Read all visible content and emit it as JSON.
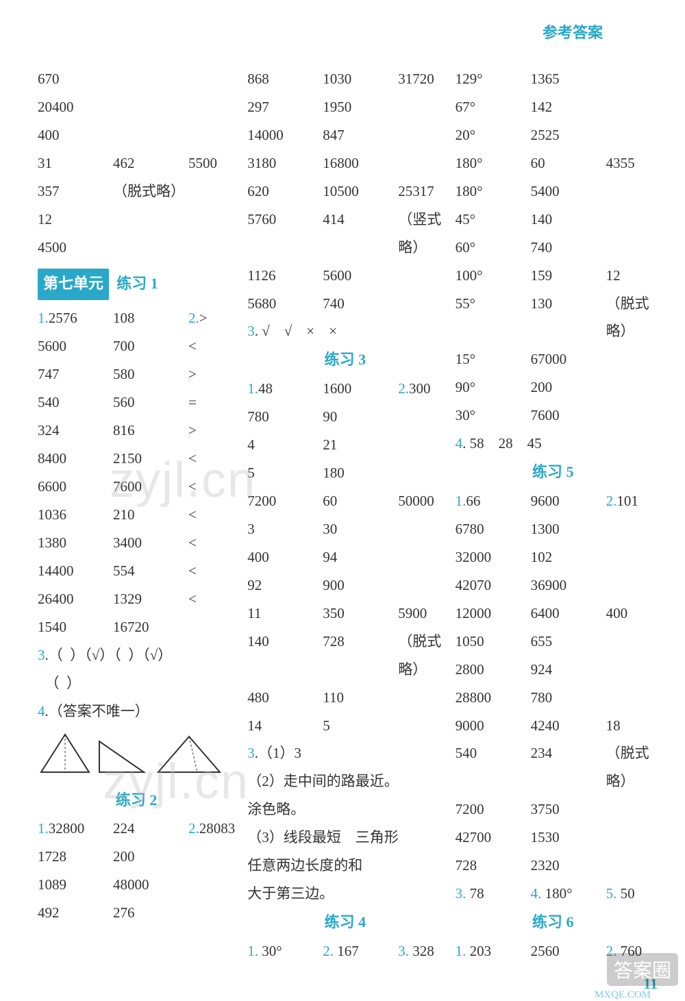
{
  "header": "参考答案",
  "col1": {
    "top_rows": [
      [
        "670",
        "",
        ""
      ],
      [
        "20400",
        "",
        ""
      ],
      [
        "400",
        "",
        ""
      ],
      [
        "31",
        "462",
        "5500"
      ],
      [
        "357",
        "（脱式略）",
        ""
      ],
      [
        "12",
        "",
        ""
      ],
      [
        "4500",
        "",
        ""
      ]
    ],
    "unit_label": "第七单元",
    "practice1": "练习 1",
    "p1_rows": [
      {
        "a": "1.",
        "an": "2576",
        "b": "108",
        "c": "2.",
        "cn": ">"
      },
      {
        "a": "",
        "an": "5600",
        "b": "700",
        "c": "",
        "cn": "<"
      },
      {
        "a": "",
        "an": "747",
        "b": "580",
        "c": "",
        "cn": ">"
      },
      {
        "a": "",
        "an": "540",
        "b": "560",
        "c": "",
        "cn": "="
      },
      {
        "a": "",
        "an": "324",
        "b": "816",
        "c": "",
        "cn": ">"
      },
      {
        "a": "",
        "an": "8400",
        "b": "2150",
        "c": "",
        "cn": "<"
      },
      {
        "a": "",
        "an": "6600",
        "b": "7600",
        "c": "",
        "cn": "<"
      },
      {
        "a": "",
        "an": "1036",
        "b": "210",
        "c": "",
        "cn": "<"
      },
      {
        "a": "",
        "an": "1380",
        "b": "3400",
        "c": "",
        "cn": "<"
      },
      {
        "a": "",
        "an": "14400",
        "b": "554",
        "c": "",
        "cn": "<"
      },
      {
        "a": "",
        "an": "26400",
        "b": "1329",
        "c": "",
        "cn": "<"
      },
      {
        "a": "",
        "an": "1540",
        "b": "16720",
        "c": "",
        "cn": ""
      }
    ],
    "q3_line1": "3.（  ）（√）（  ）（√）",
    "q3_line2": "   （  ）",
    "q4": "4.（答案不唯一）",
    "practice2": "练习 2",
    "p2_rows": [
      {
        "a": "1.",
        "an": "32800",
        "b": "224",
        "c": "2.",
        "cn": "28083"
      },
      {
        "a": "",
        "an": "1728",
        "b": "200",
        "c": "",
        "cn": ""
      },
      {
        "a": "",
        "an": "1089",
        "b": "48000",
        "c": "",
        "cn": ""
      },
      {
        "a": "",
        "an": "492",
        "b": "276",
        "c": "",
        "cn": ""
      }
    ]
  },
  "col2": {
    "top_rows": [
      [
        "868",
        "1030",
        "31720"
      ],
      [
        "297",
        "1950",
        ""
      ],
      [
        "14000",
        "847",
        ""
      ],
      [
        "3180",
        "16800",
        ""
      ],
      [
        "620",
        "10500",
        "25317"
      ],
      [
        "5760",
        "414",
        "（竖式略）"
      ],
      [
        "1126",
        "5600",
        ""
      ],
      [
        "5680",
        "740",
        ""
      ]
    ],
    "q3": "3. √　√　×　×",
    "practice3": "练习 3",
    "p3_rows": [
      {
        "a": "1.",
        "an": "48",
        "b": "1600",
        "c": "2.",
        "cn": "300"
      },
      {
        "a": "",
        "an": "780",
        "b": "90",
        "c": "",
        "cn": ""
      },
      {
        "a": "",
        "an": "4",
        "b": "21",
        "c": "",
        "cn": ""
      },
      {
        "a": "",
        "an": "5",
        "b": "180",
        "c": "",
        "cn": ""
      },
      {
        "a": "",
        "an": "7200",
        "b": "60",
        "c": "",
        "cn": "50000"
      },
      {
        "a": "",
        "an": "3",
        "b": "30",
        "c": "",
        "cn": ""
      },
      {
        "a": "",
        "an": "400",
        "b": "94",
        "c": "",
        "cn": ""
      },
      {
        "a": "",
        "an": "92",
        "b": "900",
        "c": "",
        "cn": ""
      },
      {
        "a": "",
        "an": "11",
        "b": "350",
        "c": "",
        "cn": "5900"
      },
      {
        "a": "",
        "an": "140",
        "b": "728",
        "c": "",
        "cn": "（脱式略）"
      },
      {
        "a": "",
        "an": "480",
        "b": "110",
        "c": "",
        "cn": ""
      },
      {
        "a": "",
        "an": "14",
        "b": "5",
        "c": "",
        "cn": ""
      }
    ],
    "q3b_1": "3.（1）3",
    "q3b_2": "  （2）走中间的路最近。",
    "q3b_3": "        涂色略。",
    "q3b_4": "  （3）线段最短　三角形",
    "q3b_5": "        任意两边长度的和",
    "q3b_6": "        大于第三边。",
    "practice4": "练习 4",
    "p4_q1": "1.",
    "p4_v1": "30°",
    "p4_q2": "2.",
    "p4_v2": "167",
    "p4_q3": "3.",
    "p4_v3": "328"
  },
  "col3": {
    "top_rows": [
      [
        "129°",
        "1365",
        ""
      ],
      [
        "67°",
        "142",
        ""
      ],
      [
        "20°",
        "2525",
        ""
      ],
      [
        "180°",
        "60",
        "4355"
      ],
      [
        "180°",
        "5400",
        ""
      ],
      [
        "45°",
        "140",
        ""
      ],
      [
        "60°",
        "740",
        ""
      ],
      [
        "100°",
        "159",
        "12"
      ],
      [
        "55°",
        "130",
        "（脱式略）"
      ],
      [
        "15°",
        "67000",
        ""
      ],
      [
        "90°",
        "200",
        ""
      ],
      [
        "30°",
        "7600",
        ""
      ]
    ],
    "q4": "4. 58　28　45",
    "practice5": "练习 5",
    "p5_rows": [
      {
        "a": "1.",
        "an": "66",
        "b": "9600",
        "c": "2.",
        "cn": "101"
      },
      {
        "a": "",
        "an": "6780",
        "b": "1300",
        "c": "",
        "cn": ""
      },
      {
        "a": "",
        "an": "32000",
        "b": "102",
        "c": "",
        "cn": ""
      },
      {
        "a": "",
        "an": "42070",
        "b": "36900",
        "c": "",
        "cn": ""
      },
      {
        "a": "",
        "an": "12000",
        "b": "6400",
        "c": "",
        "cn": "400"
      },
      {
        "a": "",
        "an": "1050",
        "b": "655",
        "c": "",
        "cn": ""
      },
      {
        "a": "",
        "an": "2800",
        "b": "924",
        "c": "",
        "cn": ""
      },
      {
        "a": "",
        "an": "28800",
        "b": "780",
        "c": "",
        "cn": ""
      },
      {
        "a": "",
        "an": "9000",
        "b": "4240",
        "c": "",
        "cn": "18"
      },
      {
        "a": "",
        "an": "540",
        "b": "234",
        "c": "",
        "cn": "（脱式略）"
      },
      {
        "a": "",
        "an": "7200",
        "b": "3750",
        "c": "",
        "cn": ""
      },
      {
        "a": "",
        "an": "42700",
        "b": "1530",
        "c": "",
        "cn": ""
      },
      {
        "a": "",
        "an": "728",
        "b": "2320",
        "c": "",
        "cn": ""
      }
    ],
    "q3": "3.",
    "q3v": "78",
    "q4b": "4.",
    "q4v": "180°",
    "q5": "5.",
    "q5v": "50",
    "practice6": "练习 6",
    "p6_q1": "1.",
    "p6_v1": "203",
    "p6_v2": "2560",
    "p6_q2": "2.",
    "p6_v3": "760"
  },
  "page_number": "11",
  "answer_badge": "答案圈",
  "site": "MXQE.COM",
  "wm": "zyjl.cn"
}
